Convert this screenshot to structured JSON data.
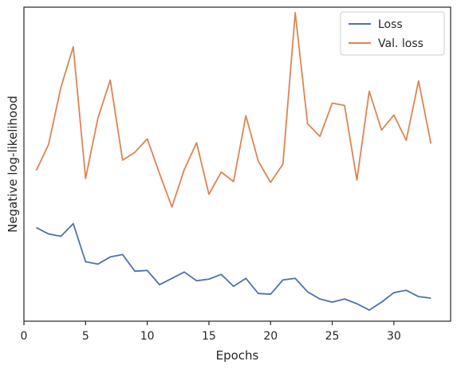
{
  "chart_data": {
    "type": "line",
    "title": "",
    "xlabel": "Epochs",
    "ylabel": "Negative log-likelihood",
    "x": [
      1,
      2,
      3,
      4,
      5,
      6,
      7,
      8,
      9,
      10,
      11,
      12,
      13,
      14,
      15,
      16,
      17,
      18,
      19,
      20,
      21,
      22,
      23,
      24,
      25,
      26,
      27,
      28,
      29,
      30,
      31,
      32,
      33
    ],
    "xlim": [
      0,
      34.6
    ],
    "ylim": [
      0.4,
      4.36
    ],
    "xticks": [
      0,
      5,
      10,
      15,
      20,
      25,
      30
    ],
    "xticklabels": [
      "0",
      "5",
      "10",
      "15",
      "20",
      "25",
      "30"
    ],
    "yticks_shown": false,
    "grid": false,
    "legend_position": "top-right",
    "series": [
      {
        "name": "Loss",
        "color": "#4c72b0",
        "values": [
          1.58,
          1.5,
          1.47,
          1.63,
          1.15,
          1.12,
          1.21,
          1.24,
          1.03,
          1.04,
          0.86,
          0.94,
          1.02,
          0.91,
          0.93,
          0.99,
          0.84,
          0.94,
          0.75,
          0.74,
          0.92,
          0.94,
          0.77,
          0.68,
          0.64,
          0.68,
          0.62,
          0.54,
          0.64,
          0.76,
          0.79,
          0.71,
          0.69
        ]
      },
      {
        "name": "Val. loss",
        "color": "#dd8452",
        "values": [
          2.3,
          2.63,
          3.35,
          3.86,
          2.2,
          2.96,
          3.44,
          2.43,
          2.53,
          2.7,
          2.26,
          1.84,
          2.31,
          2.65,
          2.0,
          2.28,
          2.16,
          2.99,
          2.42,
          2.15,
          2.38,
          4.29,
          2.89,
          2.73,
          3.15,
          3.12,
          2.18,
          3.3,
          2.81,
          3.0,
          2.68,
          3.43,
          2.64
        ]
      }
    ]
  }
}
